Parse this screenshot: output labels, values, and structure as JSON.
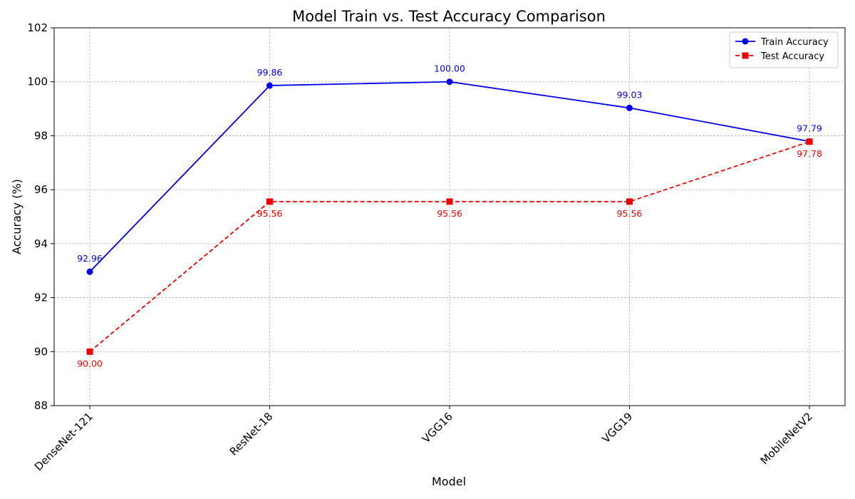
{
  "chart_data": {
    "type": "line",
    "title": "Model Train vs. Test Accuracy Comparison",
    "xlabel": "Model",
    "ylabel": "Accuracy (%)",
    "categories": [
      "DenseNet-121",
      "ResNet-18",
      "VGG16",
      "VGG19",
      "MobileNetV2"
    ],
    "ylim": [
      88,
      102
    ],
    "yticks": [
      88,
      90,
      92,
      94,
      96,
      98,
      100,
      102
    ],
    "grid": true,
    "legend_position": "top-right",
    "series": [
      {
        "name": "Train Accuracy",
        "values": [
          92.96,
          99.86,
          100.0,
          99.03,
          97.79
        ],
        "labels": [
          "92.96",
          "99.86",
          "100.00",
          "99.03",
          "97.79"
        ],
        "color": "#0000ee",
        "marker": "circle",
        "line_style": "solid",
        "label_position": "above"
      },
      {
        "name": "Test Accuracy",
        "values": [
          90.0,
          95.56,
          95.56,
          95.56,
          97.78
        ],
        "labels": [
          "90.00",
          "95.56",
          "95.56",
          "95.56",
          "97.78"
        ],
        "color": "#ee0000",
        "marker": "square",
        "line_style": "dashed",
        "label_position": "below"
      }
    ]
  }
}
